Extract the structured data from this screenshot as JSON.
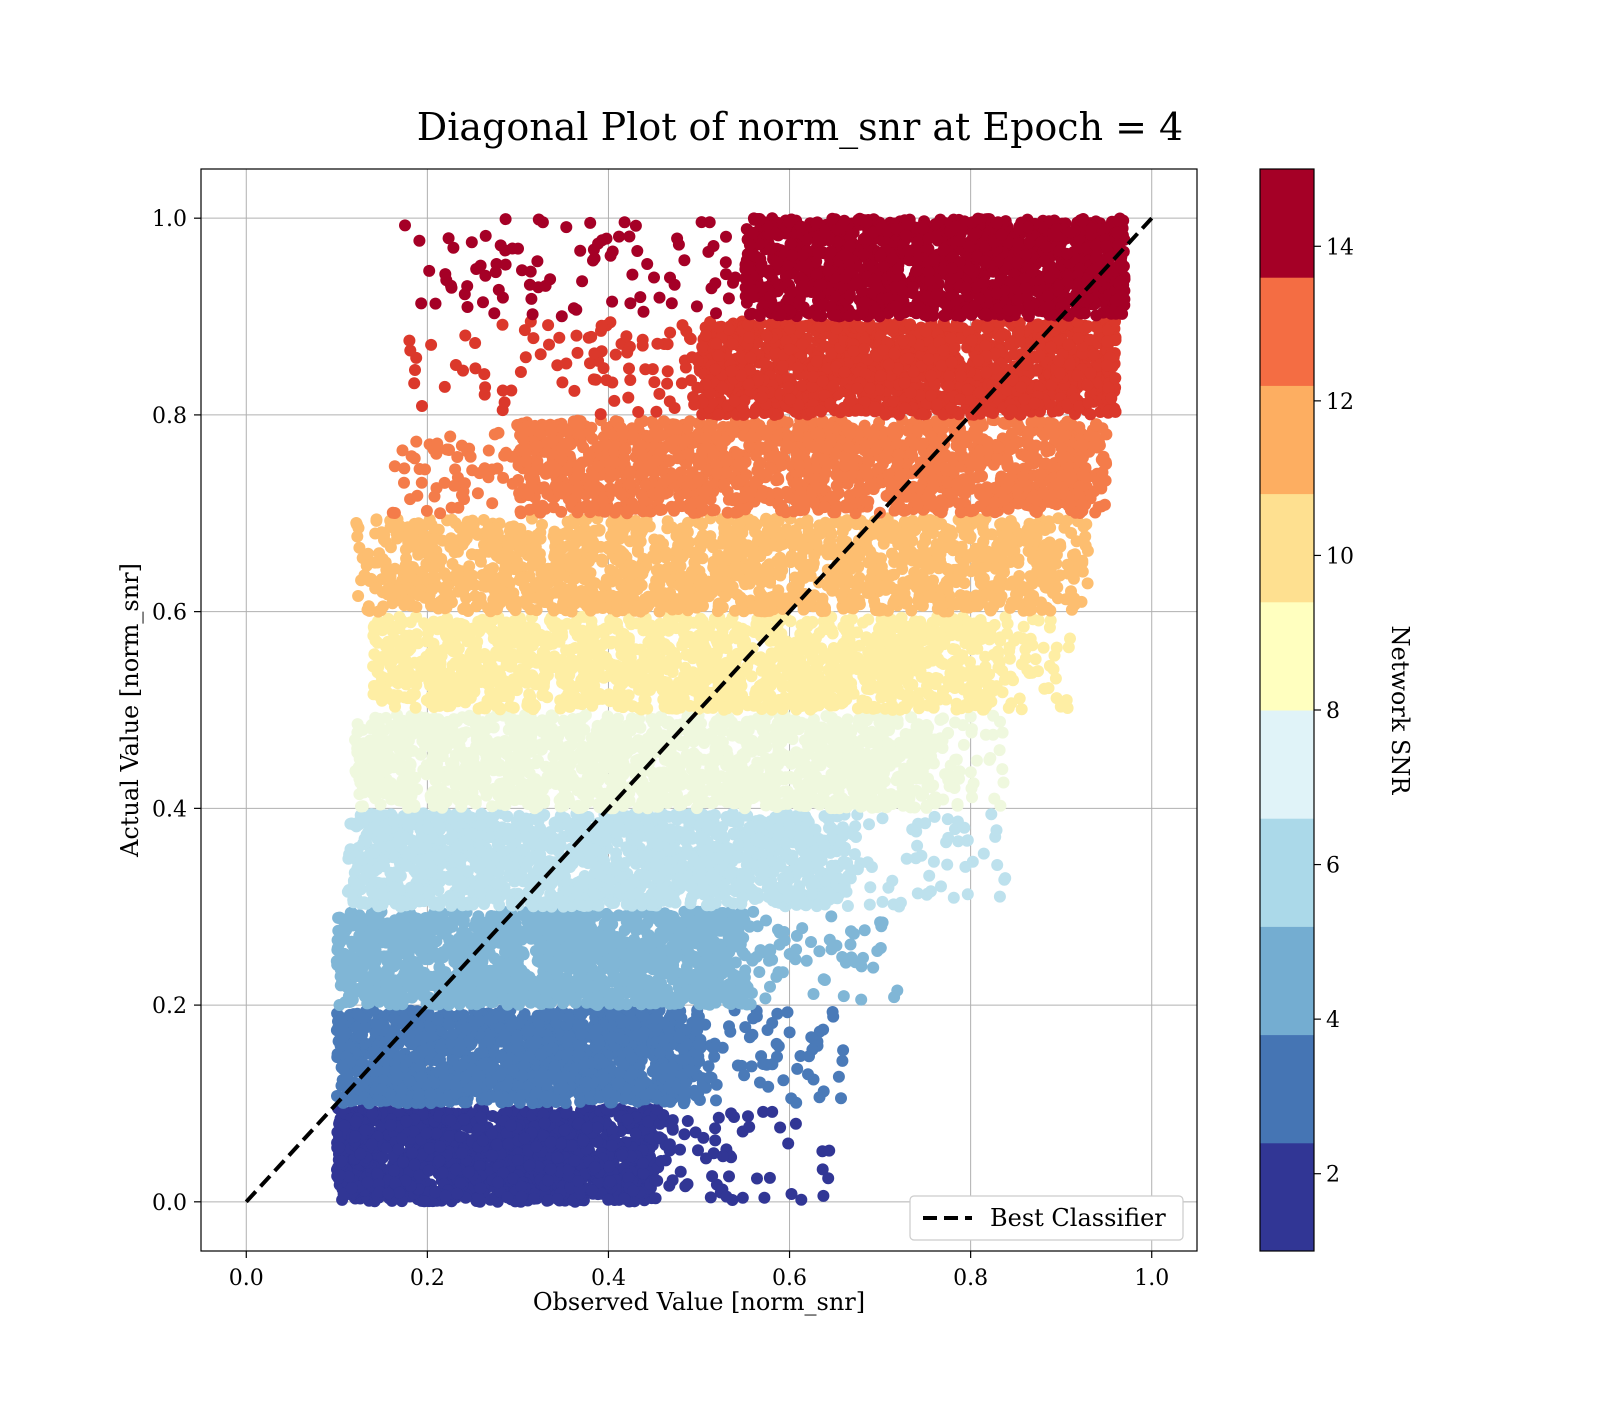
{
  "chart_data": {
    "type": "scatter",
    "title": "Diagonal Plot of norm_snr at Epoch = 4",
    "xlabel": "Observed Value [norm_snr]",
    "ylabel": "Actual Value [norm_snr]",
    "xlim": [
      -0.05,
      1.05
    ],
    "ylim": [
      -0.05,
      1.05
    ],
    "xticks": [
      "0.0",
      "0.2",
      "0.4",
      "0.6",
      "0.8",
      "1.0"
    ],
    "yticks": [
      "0.0",
      "0.2",
      "0.4",
      "0.6",
      "0.8",
      "1.0"
    ],
    "grid": true,
    "legend": {
      "position": "lower-right",
      "entries": [
        {
          "label": "Best Classifier",
          "style": "dashed",
          "color": "#000000"
        }
      ]
    },
    "reference_line": {
      "x": [
        0.0,
        1.0
      ],
      "y": [
        0.0,
        1.0
      ],
      "style": "dashed",
      "color": "#000000"
    },
    "colorbar": {
      "label": "Network SNR",
      "range": [
        1,
        15
      ],
      "ticks": [
        "2",
        "4",
        "6",
        "8",
        "10",
        "12",
        "14"
      ],
      "colors": [
        "#313695",
        "#4575b4",
        "#74add1",
        "#abd9e9",
        "#e0f3f8",
        "#ffffbf",
        "#fee090",
        "#fdae61",
        "#f46d43",
        "#a50026"
      ]
    },
    "bands": [
      {
        "y_range": [
          0.0,
          0.095
        ],
        "x_core": [
          0.1,
          0.45
        ],
        "x_spread_max": 0.65,
        "color": "#313695"
      },
      {
        "y_range": [
          0.1,
          0.195
        ],
        "x_core": [
          0.1,
          0.5
        ],
        "x_spread_max": 0.66,
        "color": "#4a7ab8"
      },
      {
        "y_range": [
          0.2,
          0.295
        ],
        "x_core": [
          0.1,
          0.55
        ],
        "x_spread_max": 0.72,
        "color": "#80b6d6"
      },
      {
        "y_range": [
          0.3,
          0.395
        ],
        "x_core": [
          0.11,
          0.66
        ],
        "x_spread_max": 0.84,
        "color": "#bde1ed"
      },
      {
        "y_range": [
          0.4,
          0.495
        ],
        "x_core": [
          0.12,
          0.75
        ],
        "x_spread_max": 0.84,
        "color": "#eff8de"
      },
      {
        "y_range": [
          0.5,
          0.595
        ],
        "x_core": [
          0.14,
          0.82
        ],
        "x_spread_max": 0.91,
        "color": "#feeea4"
      },
      {
        "y_range": [
          0.6,
          0.695
        ],
        "x_core": [
          0.17,
          0.88
        ],
        "x_spread_max": 0.93,
        "color": "#fdbe70"
      },
      {
        "y_range": [
          0.7,
          0.795
        ],
        "x_core": [
          0.3,
          0.92
        ],
        "x_spread_max": 0.95,
        "color": "#f47c4a"
      },
      {
        "y_range": [
          0.8,
          0.895
        ],
        "x_core": [
          0.5,
          0.95
        ],
        "x_spread_max": 0.96,
        "color": "#db382b"
      },
      {
        "y_range": [
          0.9,
          1.0
        ],
        "x_core": [
          0.55,
          0.96
        ],
        "x_spread_max": 0.97,
        "color": "#a50026"
      }
    ]
  }
}
